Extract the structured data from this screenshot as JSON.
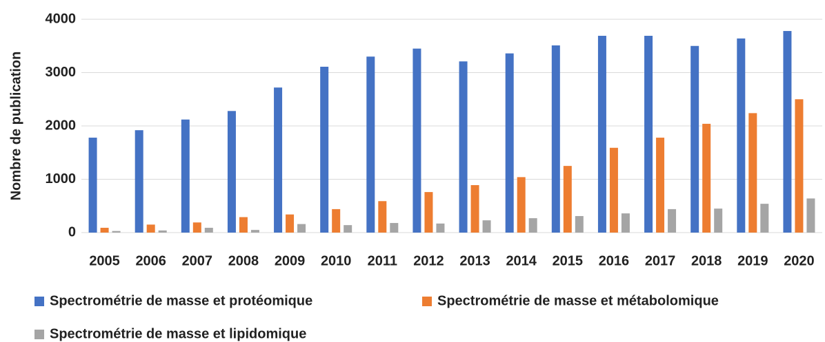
{
  "chart_data": {
    "type": "bar",
    "ylabel": "Nombre de publication",
    "categories": [
      "2005",
      "2006",
      "2007",
      "2008",
      "2009",
      "2010",
      "2011",
      "2012",
      "2013",
      "2014",
      "2015",
      "2016",
      "2017",
      "2018",
      "2019",
      "2020"
    ],
    "series": [
      {
        "name": "Spectrométrie de masse et protéomique",
        "color": "#4472c4",
        "values": [
          1780,
          1920,
          2120,
          2280,
          2720,
          3110,
          3300,
          3450,
          3210,
          3360,
          3510,
          3690,
          3690,
          3500,
          3640,
          3780
        ]
      },
      {
        "name": "Spectrométrie de masse et métabolomique",
        "color": "#ed7d31",
        "values": [
          90,
          150,
          190,
          290,
          340,
          440,
          590,
          760,
          890,
          1040,
          1250,
          1590,
          1780,
          2040,
          2240,
          2500
        ]
      },
      {
        "name": "Spectrométrie de masse et lipidomique",
        "color": "#a5a5a5",
        "values": [
          30,
          40,
          90,
          50,
          160,
          140,
          180,
          170,
          230,
          270,
          310,
          360,
          440,
          450,
          540,
          640
        ]
      }
    ],
    "ylim": [
      0,
      4000
    ],
    "yticks": [
      0,
      1000,
      2000,
      3000,
      4000
    ],
    "grid": true
  }
}
